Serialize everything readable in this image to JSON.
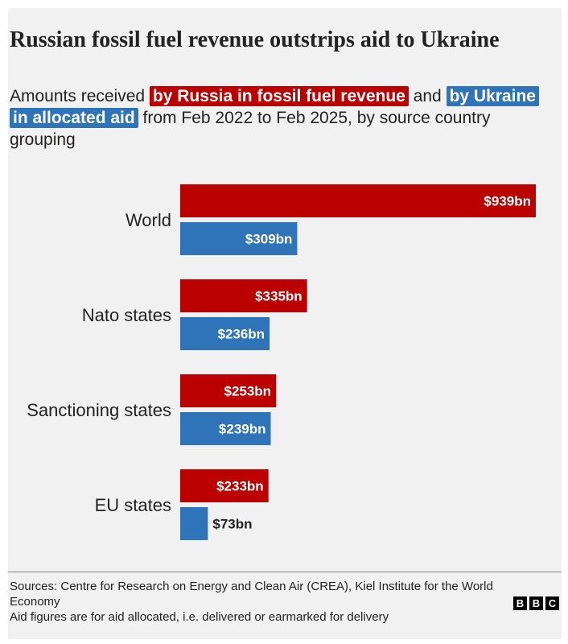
{
  "title": "Russian fossil fuel revenue outstrips aid to Ukraine",
  "subtitle": {
    "prefix": "Amounts received ",
    "russia_label": "by Russia in fossil fuel revenue",
    "middle": " and ",
    "ukraine_label": "by Ukraine in allocated aid",
    "suffix": " from Feb 2022 to Feb 2025, by source country grouping"
  },
  "colors": {
    "russia": "#bb0000",
    "ukraine": "#2f73b8",
    "background": "#f1f1f1"
  },
  "chart_data": {
    "type": "bar",
    "orientation": "horizontal",
    "categories": [
      "World",
      "Nato states",
      "Sanctioning states",
      "EU states"
    ],
    "series": [
      {
        "name": "by Russia in fossil fuel revenue",
        "values": [
          939,
          335,
          253,
          233
        ],
        "labels": [
          "$939bn",
          "$335bn",
          "$253bn",
          "$233bn"
        ]
      },
      {
        "name": "by Ukraine in allocated aid",
        "values": [
          309,
          236,
          239,
          73
        ],
        "labels": [
          "$309bn",
          "$236bn",
          "$239bn",
          "$73bn"
        ]
      }
    ],
    "unit": "$bn",
    "xlim": [
      0,
      939
    ],
    "grid": false,
    "legend": "in subtitle"
  },
  "footer": {
    "sources_line": "Sources: Centre for Research on Energy and Clean Air (CREA), Kiel Institute for the World Economy",
    "note_line": "Aid figures are for aid allocated, i.e. delivered or earmarked for delivery",
    "logo_letters": [
      "B",
      "B",
      "C"
    ]
  }
}
